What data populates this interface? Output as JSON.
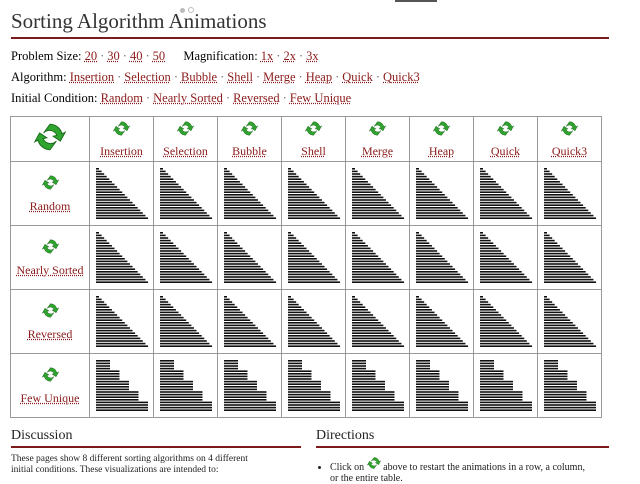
{
  "page": {
    "title": "Sorting Algorithm Animations"
  },
  "options": {
    "problem_size": {
      "label": "Problem Size:",
      "items": [
        "20",
        "30",
        "40",
        "50"
      ]
    },
    "magnification": {
      "label": "Magnification:",
      "items": [
        "1x",
        "2x",
        "3x"
      ]
    },
    "algorithm": {
      "label": "Algorithm:",
      "items": [
        "Insertion",
        "Selection",
        "Bubble",
        "Shell",
        "Merge",
        "Heap",
        "Quick",
        "Quick3"
      ]
    },
    "initial_condition": {
      "label": "Initial Condition:",
      "items": [
        "Random",
        "Nearly Sorted",
        "Reversed",
        "Few Unique"
      ]
    }
  },
  "grid": {
    "columns": [
      "Insertion",
      "Selection",
      "Bubble",
      "Shell",
      "Merge",
      "Heap",
      "Quick",
      "Quick3"
    ],
    "rows": [
      {
        "label": "Random",
        "pattern": "triangle"
      },
      {
        "label": "Nearly Sorted",
        "pattern": "triangle"
      },
      {
        "label": "Reversed",
        "pattern": "triangle"
      },
      {
        "label": "Few Unique",
        "pattern": "steps"
      }
    ],
    "icon": "restart-icon",
    "colors": {
      "icon_green": "#2fa52f",
      "bars": "#111111",
      "link": "#8b1a1a",
      "rule": "#7a1a1a"
    }
  },
  "discussion": {
    "heading": "Discussion",
    "text_line1": "These pages show 8 different sorting algorithms on 4 different",
    "text_line2": "initial conditions. These visualizations are intended to:"
  },
  "directions": {
    "heading": "Directions",
    "item_before": "Click on",
    "item_after": "above to restart the animations in a row, a column,",
    "item_line2": "or the entire table."
  }
}
